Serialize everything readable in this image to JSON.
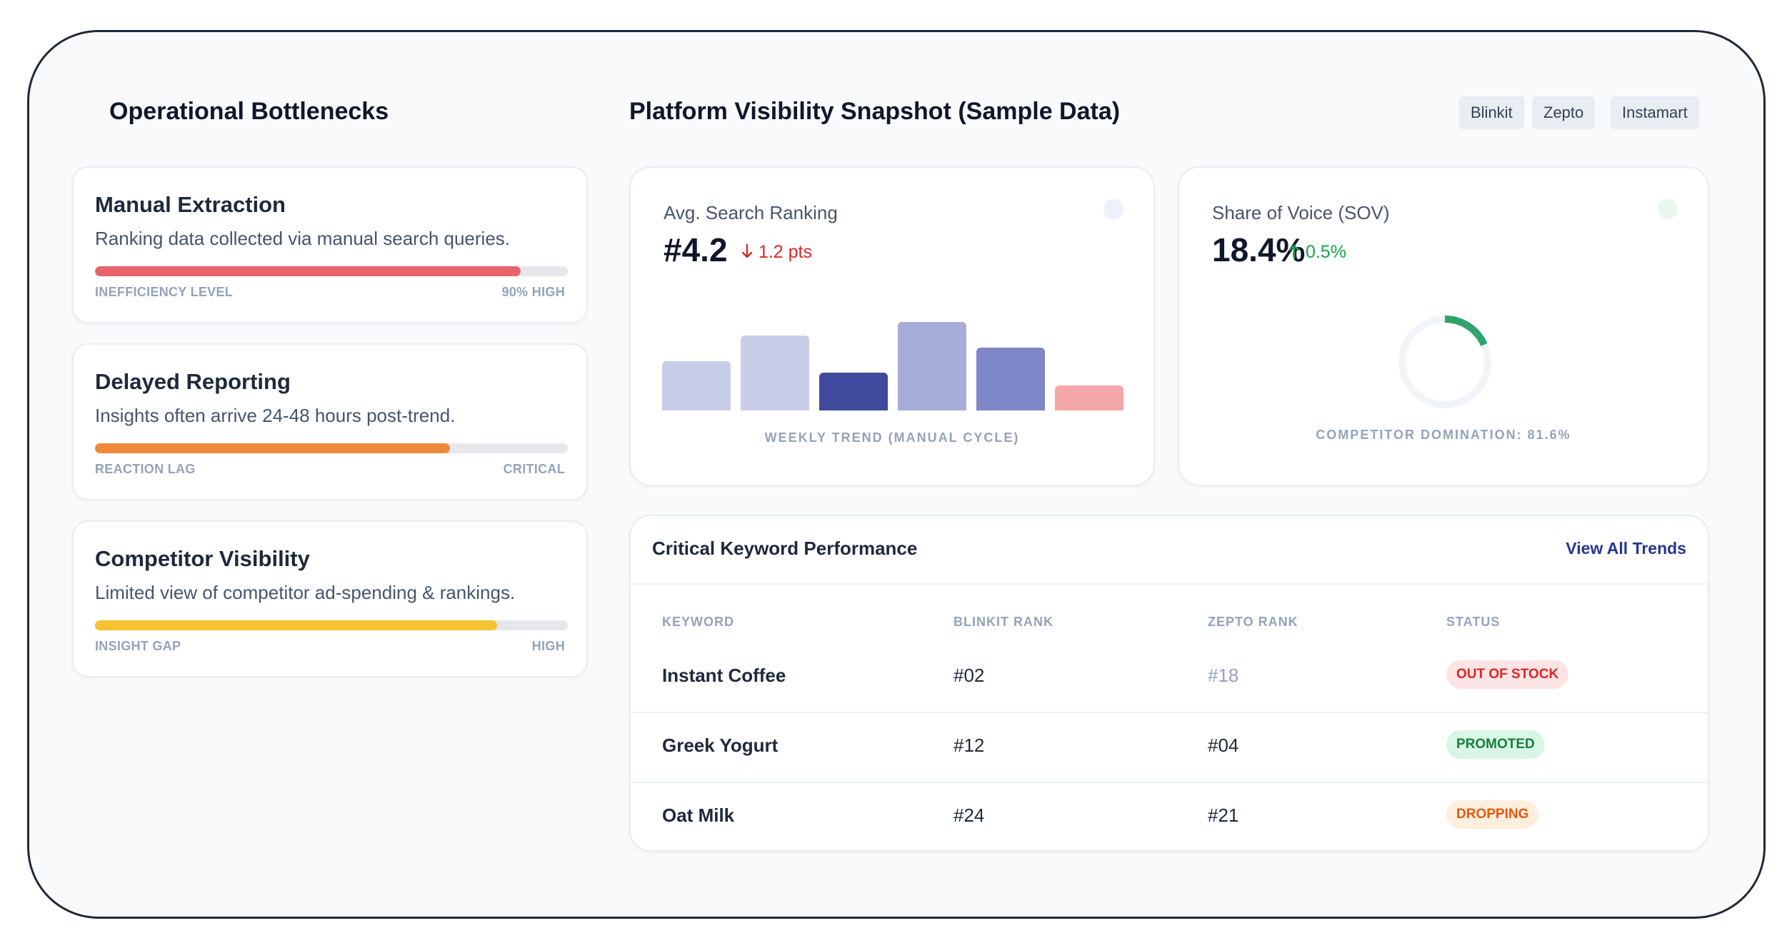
{
  "left": {
    "title": "Operational Bottlenecks",
    "cards": [
      {
        "title": "Manual Extraction",
        "desc": "Ranking data collected via manual search queries.",
        "foot_left": "INEFFICIENCY LEVEL",
        "foot_right": "90% HIGH",
        "level": 0.9,
        "color": "#e8636a"
      },
      {
        "title": "Delayed Reporting",
        "desc": "Insights often arrive 24-48 hours post-trend.",
        "foot_left": "REACTION LAG",
        "foot_right": "CRITICAL",
        "level": 0.75,
        "color": "#ef8a3a"
      },
      {
        "title": "Competitor Visibility",
        "desc": "Limited view of competitor ad-spending & rankings.",
        "foot_left": "INSIGHT GAP",
        "foot_right": "HIGH",
        "level": 0.85,
        "color": "#f5c231"
      }
    ]
  },
  "right": {
    "title": "Platform Visibility Snapshot (Sample Data)",
    "platforms": [
      "Blinkit",
      "Zepto",
      "Instamart"
    ]
  },
  "ranking": {
    "label": "Avg. Search Ranking",
    "value": "#4.2",
    "delta": "1.2 pts",
    "delta_icon": "arrow-down-icon",
    "delta_color": "#dc2626",
    "caption": "WEEKLY TREND (MANUAL CYCLE)",
    "trend_levels": [
      0.56,
      0.85,
      0.43,
      1.0,
      0.71,
      0.28
    ],
    "trend_colors": [
      "#c8cdea",
      "#c8cdea",
      "#3f4a9c",
      "#a5add8",
      "#7d86c6",
      "#f4a7a9"
    ]
  },
  "sov": {
    "label": "Share of Voice (SOV)",
    "value": "18.4%",
    "delta": "0.5%",
    "delta_icon": "arrow-up-icon",
    "delta_color": "#16a34a",
    "share": 0.184,
    "ring_color": "#2fa36b",
    "caption": "COMPETITOR DOMINATION: 81.6%"
  },
  "keywords": {
    "title": "Critical Keyword Performance",
    "link": "View All Trends",
    "headers": [
      "KEYWORD",
      "BLINKIT RANK",
      "ZEPTO RANK",
      "STATUS"
    ],
    "rows": [
      {
        "keyword": "Instant Coffee",
        "blinkit": "#02",
        "zepto": "#18",
        "status": "OUT OF STOCK",
        "status_bg": "#fde4e4",
        "status_fg": "#dc2626",
        "zepto_color": "#94a3b8"
      },
      {
        "keyword": "Greek Yogurt",
        "blinkit": "#12",
        "zepto": "#04",
        "status": "PROMOTED",
        "status_bg": "#d9f5e6",
        "status_fg": "#15803d",
        "zepto_color": "#1e293b"
      },
      {
        "keyword": "Oat Milk",
        "blinkit": "#24",
        "zepto": "#21",
        "status": "DROPPING",
        "status_bg": "#fdeedd",
        "status_fg": "#ea580c",
        "zepto_color": "#1e293b"
      }
    ]
  }
}
